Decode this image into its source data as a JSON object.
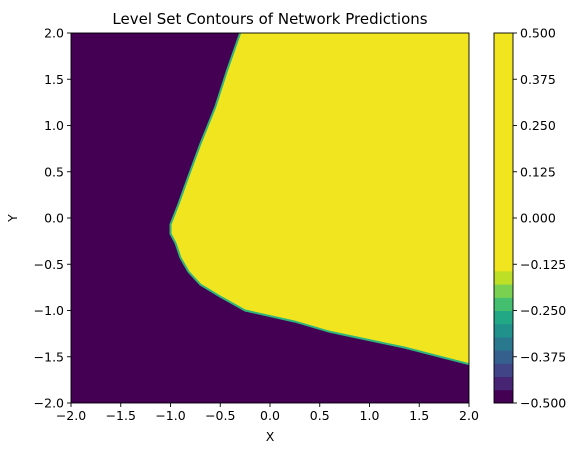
{
  "chart_data": {
    "type": "heatmap",
    "subtype": "filled-contour",
    "title": "Level Set Contours of Network Predictions",
    "xlabel": "X",
    "ylabel": "Y",
    "xlim": [
      -2.0,
      2.0
    ],
    "ylim": [
      -2.0,
      2.0
    ],
    "x_ticks": [
      "−2.0",
      "−1.5",
      "−1.0",
      "−0.5",
      "0.0",
      "0.5",
      "1.0",
      "1.5",
      "2.0"
    ],
    "x_tick_values": [
      -2.0,
      -1.5,
      -1.0,
      -0.5,
      0.0,
      0.5,
      1.0,
      1.5,
      2.0
    ],
    "y_ticks": [
      "−2.0",
      "−1.5",
      "−1.0",
      "−0.5",
      "0.0",
      "0.5",
      "1.0",
      "1.5",
      "2.0"
    ],
    "y_tick_values": [
      -2.0,
      -1.5,
      -1.0,
      -0.5,
      0.0,
      0.5,
      1.0,
      1.5,
      2.0
    ],
    "grid": false,
    "colormap": "viridis",
    "low_color": "#440154",
    "high_color": "#f0e51f",
    "low_value": -0.5,
    "high_value": 0.5,
    "boundary_level": 0.0,
    "decision_boundary": [
      {
        "x": -0.3,
        "y": 2.0
      },
      {
        "x": -0.43,
        "y": 1.6
      },
      {
        "x": -0.55,
        "y": 1.2
      },
      {
        "x": -0.7,
        "y": 0.8
      },
      {
        "x": -0.82,
        "y": 0.45
      },
      {
        "x": -0.92,
        "y": 0.15
      },
      {
        "x": -1.0,
        "y": -0.07
      },
      {
        "x": -1.0,
        "y": -0.17
      },
      {
        "x": -0.95,
        "y": -0.27
      },
      {
        "x": -0.9,
        "y": -0.43
      },
      {
        "x": -0.82,
        "y": -0.58
      },
      {
        "x": -0.7,
        "y": -0.72
      },
      {
        "x": -0.5,
        "y": -0.85
      },
      {
        "x": -0.25,
        "y": -1.0
      },
      {
        "x": 0.25,
        "y": -1.12
      },
      {
        "x": 0.6,
        "y": -1.23
      },
      {
        "x": 1.35,
        "y": -1.4
      },
      {
        "x": 2.0,
        "y": -1.58
      }
    ],
    "colorbar": {
      "levels": [
        -0.5,
        -0.375,
        -0.25,
        -0.125,
        0.0,
        0.125,
        0.25,
        0.375,
        0.5
      ],
      "tick_labels": [
        "−0.500",
        "−0.375",
        "−0.250",
        "−0.125",
        "0.000",
        "0.125",
        "0.250",
        "0.375",
        "0.500"
      ],
      "bands": [
        "#440154",
        "#482475",
        "#414487",
        "#355f8d",
        "#2a788e",
        "#21918c",
        "#22a884",
        "#44bf70",
        "#7ad151",
        "#bddf26",
        "#f0e51f"
      ],
      "band_weights": [
        1,
        1,
        1,
        1,
        1,
        1,
        1,
        1,
        1,
        1,
        18
      ]
    }
  }
}
